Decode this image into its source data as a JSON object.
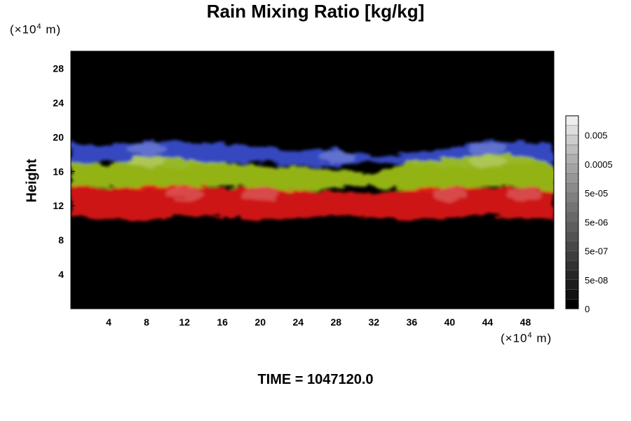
{
  "chart_data": {
    "type": "heatmap",
    "title": "Rain Mixing Ratio [kg/kg]",
    "xlabel": "",
    "ylabel": "Height",
    "x_unit": {
      "prefix": "(×10",
      "exponent": "4",
      "suffix": " m)"
    },
    "y_unit": {
      "prefix": "(×10",
      "exponent": "4",
      "suffix": " m)"
    },
    "xlim": [
      0,
      51
    ],
    "ylim": [
      0,
      30
    ],
    "x_ticks": [
      4,
      8,
      12,
      16,
      20,
      24,
      28,
      32,
      36,
      40,
      44,
      48
    ],
    "y_ticks": [
      4,
      8,
      12,
      16,
      20,
      24,
      28
    ],
    "background_color": "#000000",
    "bands": [
      {
        "layer": "blue",
        "color": "#3a4fd0",
        "y_bottom": 16.8,
        "y_top": 19.4,
        "x": [
          0,
          4,
          8,
          12,
          16,
          20,
          24,
          28,
          32,
          36,
          40,
          44,
          48,
          51
        ],
        "top_profile": [
          19.3,
          19.0,
          19.6,
          19.4,
          19.2,
          18.8,
          18.4,
          18.6,
          17.6,
          18.2,
          18.8,
          19.6,
          19.4,
          19.0
        ]
      },
      {
        "layer": "yellow-green",
        "color": "#9fc21a",
        "y_bottom": 14.0,
        "y_top": 17.6,
        "x": [
          0,
          4,
          8,
          12,
          16,
          20,
          24,
          28,
          32,
          36,
          40,
          44,
          48,
          51
        ],
        "top_profile": [
          17.2,
          16.8,
          18.0,
          17.4,
          17.0,
          16.6,
          16.4,
          16.2,
          15.8,
          17.2,
          17.6,
          18.0,
          17.8,
          16.8
        ]
      },
      {
        "layer": "red",
        "color": "#e01818",
        "y_bottom": 10.6,
        "y_top": 14.4,
        "x": [
          0,
          4,
          8,
          12,
          16,
          20,
          24,
          28,
          32,
          36,
          40,
          44,
          48,
          51
        ],
        "top_profile": [
          14.4,
          14.0,
          14.2,
          14.4,
          14.0,
          14.2,
          13.8,
          13.6,
          13.4,
          14.0,
          14.2,
          14.0,
          14.2,
          13.8
        ]
      }
    ],
    "colorbar": {
      "levels": [
        0,
        1e-08,
        2e-08,
        5e-08,
        1e-07,
        2e-07,
        5e-07,
        1e-06,
        2e-06,
        5e-06,
        1e-05,
        2e-05,
        5e-05,
        0.0001,
        0.0002,
        0.0005,
        0.001,
        0.002,
        0.005,
        0.01
      ],
      "tick_labels": [
        "0",
        "5e-08",
        "5e-07",
        "5e-06",
        "5e-05",
        "0.0005",
        "0.005"
      ],
      "colors": [
        "#000000",
        "#111111",
        "#1c1c1c",
        "#272727",
        "#323232",
        "#3d3d3d",
        "#484848",
        "#535353",
        "#5e5e5e",
        "#696969",
        "#747474",
        "#808080",
        "#8b8b8b",
        "#979797",
        "#a3a3a3",
        "#afafaf",
        "#bdbdbd",
        "#cccccc",
        "#dddddd",
        "#eeeeee"
      ]
    },
    "time_label": "TIME = 1047120.0"
  }
}
